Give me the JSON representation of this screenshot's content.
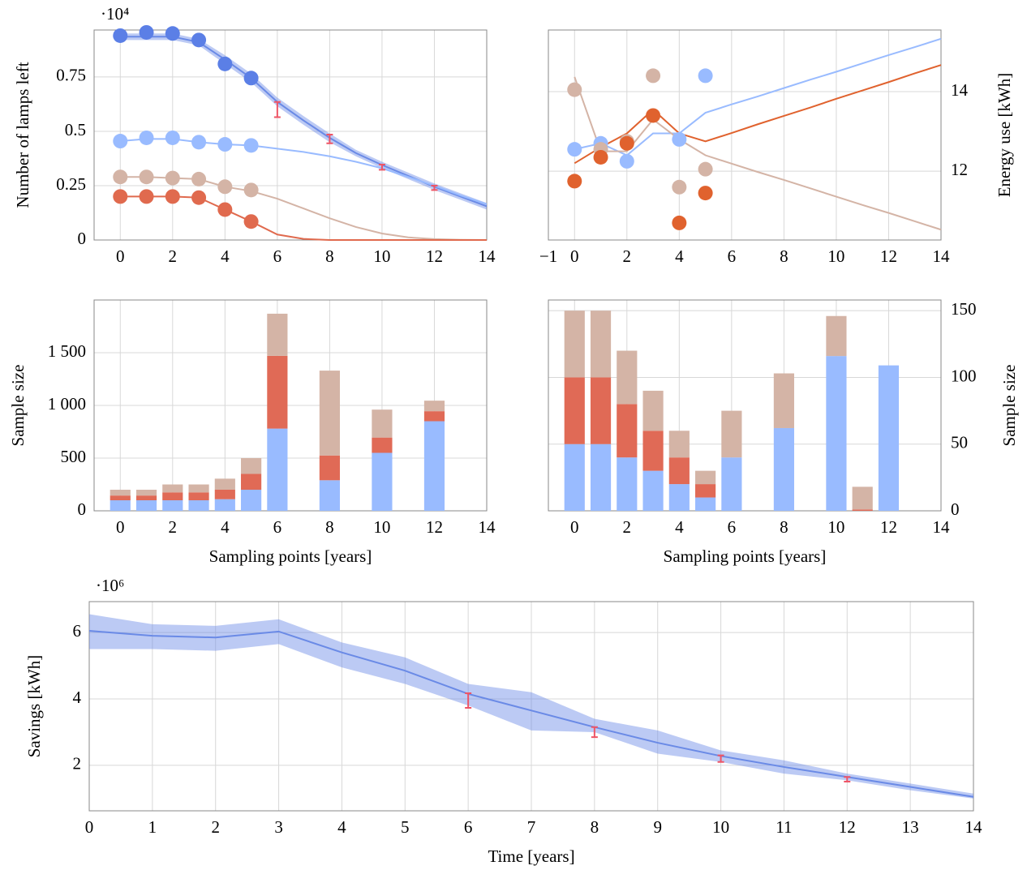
{
  "chart_data": [
    {
      "type": "line",
      "ylabel": "Number of lamps left",
      "y_multiplier": "·10⁴",
      "xlim": [
        -1,
        14
      ],
      "ylim": [
        0,
        0.966
      ],
      "xticks": [
        0,
        2,
        4,
        6,
        8,
        10,
        12,
        14
      ],
      "yticks": [
        0,
        0.25,
        0.5,
        0.75
      ],
      "grid": true,
      "x": [
        0,
        1,
        2,
        3,
        4,
        5,
        6,
        7,
        8,
        9,
        10,
        11,
        12,
        13,
        14
      ],
      "series": [
        {
          "color": "#6a8ae6",
          "values": [
            0.935,
            0.935,
            0.935,
            0.91,
            0.83,
            0.745,
            0.635,
            0.55,
            0.47,
            0.4,
            0.345,
            0.295,
            0.245,
            0.2,
            0.155
          ],
          "lower": [
            0.92,
            0.92,
            0.92,
            0.895,
            0.81,
            0.725,
            0.615,
            0.53,
            0.45,
            0.385,
            0.33,
            0.28,
            0.23,
            0.185,
            0.14
          ],
          "upper": [
            0.95,
            0.95,
            0.95,
            0.925,
            0.85,
            0.765,
            0.655,
            0.57,
            0.49,
            0.415,
            0.36,
            0.31,
            0.26,
            0.215,
            0.17
          ]
        },
        {
          "color": "#99bbff",
          "values": [
            0.455,
            0.465,
            0.465,
            0.45,
            0.44,
            0.435,
            0.42,
            0.405,
            0.385,
            0.36,
            0.33,
            0.29,
            0.25,
            0.205,
            0.165
          ]
        },
        {
          "color": "#d4b4a6",
          "values": [
            0.29,
            0.29,
            0.285,
            0.28,
            0.245,
            0.225,
            0.19,
            0.145,
            0.1,
            0.06,
            0.03,
            0.012,
            0.004,
            0.001,
            0
          ]
        },
        {
          "color": "#e06a4e",
          "values": [
            0.2,
            0.2,
            0.2,
            0.195,
            0.14,
            0.085,
            0.025,
            0.005,
            0,
            0,
            0,
            0,
            0,
            0,
            0
          ]
        }
      ],
      "points": [
        {
          "color": "#5b7fe6",
          "x": [
            0,
            1,
            2,
            3,
            4,
            5
          ],
          "values": [
            0.94,
            0.955,
            0.95,
            0.92,
            0.81,
            0.745
          ]
        },
        {
          "color": "#99bbff",
          "x": [
            0,
            1,
            2,
            3,
            4,
            5
          ],
          "values": [
            0.455,
            0.47,
            0.47,
            0.45,
            0.44,
            0.435
          ]
        },
        {
          "color": "#d4b4a6",
          "x": [
            0,
            1,
            2,
            3,
            4,
            5
          ],
          "values": [
            0.29,
            0.29,
            0.285,
            0.28,
            0.245,
            0.23
          ]
        },
        {
          "color": "#e06a4e",
          "x": [
            0,
            1,
            2,
            3,
            4,
            5
          ],
          "values": [
            0.2,
            0.2,
            0.2,
            0.195,
            0.14,
            0.085
          ]
        }
      ],
      "error_bars": {
        "color": "#ee5566",
        "x": [
          6,
          8,
          10,
          12
        ],
        "values": [
          0.6,
          0.465,
          0.335,
          0.24
        ],
        "errors": [
          0.035,
          0.02,
          0.012,
          0.01
        ]
      }
    },
    {
      "type": "line",
      "ylabel": "Energy use [kWh]",
      "y_axis_side": "right",
      "xlim": [
        -1,
        14
      ],
      "ylim": [
        10.27,
        15.55
      ],
      "xticks": [
        {
          "value": -1,
          "label": "−1"
        },
        0,
        2,
        4,
        6,
        8,
        10,
        12,
        14
      ],
      "yticks": [
        12,
        14
      ],
      "grid": true,
      "x": [
        0,
        1,
        2,
        3,
        4,
        5,
        6,
        7,
        8,
        9,
        10,
        11,
        12,
        13,
        14
      ],
      "series": [
        {
          "color": "#99bbff",
          "values": [
            12.55,
            12.7,
            12.4,
            12.95,
            12.95,
            13.47,
            13.68,
            13.88,
            14.09,
            14.3,
            14.5,
            14.71,
            14.92,
            15.12,
            15.33
          ]
        },
        {
          "color": "#e0622e",
          "values": [
            12.2,
            12.6,
            12.95,
            13.55,
            12.95,
            12.75,
            12.96,
            13.18,
            13.39,
            13.6,
            13.82,
            14.03,
            14.24,
            14.46,
            14.67
          ]
        },
        {
          "color": "#d4b4a6",
          "values": [
            14.37,
            12.5,
            12.5,
            13.3,
            12.8,
            12.4,
            12.19,
            11.98,
            11.78,
            11.57,
            11.36,
            11.15,
            10.95,
            10.74,
            10.53
          ]
        }
      ],
      "points": [
        {
          "color": "#99bbff",
          "x": [
            0,
            1,
            2,
            3,
            4,
            5
          ],
          "values": [
            12.55,
            12.7,
            12.25,
            null,
            12.8,
            14.4
          ]
        },
        {
          "color": "#d4b4a6",
          "x": [
            0,
            1,
            2,
            3,
            4,
            5
          ],
          "values": [
            14.05,
            12.55,
            12.75,
            14.4,
            11.6,
            12.05
          ]
        },
        {
          "color": "#e0622e",
          "x": [
            0,
            1,
            2,
            3,
            4,
            5
          ],
          "values": [
            11.75,
            12.35,
            12.7,
            13.4,
            10.7,
            11.45
          ]
        }
      ]
    },
    {
      "type": "bar",
      "stacked": true,
      "ylabel": "Sample size",
      "xlabel": "Sampling points [years]",
      "xlim": [
        -1,
        14
      ],
      "ylim": [
        0,
        2000
      ],
      "xticks": [
        0,
        2,
        4,
        6,
        8,
        10,
        12,
        14
      ],
      "yticks": [
        0,
        500,
        {
          "value": 1000,
          "label": "1 000"
        },
        {
          "value": 1500,
          "label": "1 500"
        }
      ],
      "grid": true,
      "x": [
        0,
        1,
        2,
        3,
        4,
        5,
        6,
        8,
        10,
        12
      ],
      "series": [
        {
          "color": "#99bbff",
          "values": [
            100,
            100,
            100,
            100,
            110,
            200,
            780,
            290,
            550,
            850
          ]
        },
        {
          "color": "#e06a56",
          "values": [
            45,
            45,
            75,
            75,
            90,
            150,
            690,
            235,
            145,
            95
          ]
        },
        {
          "color": "#d4b4a6",
          "values": [
            55,
            55,
            75,
            75,
            105,
            150,
            400,
            805,
            265,
            100
          ]
        }
      ]
    },
    {
      "type": "bar",
      "stacked": true,
      "ylabel": "Sample size",
      "xlabel": "Sampling points [years]",
      "y_axis_side": "right",
      "xlim": [
        -1,
        14
      ],
      "ylim": [
        0,
        158
      ],
      "xticks": [
        0,
        2,
        4,
        6,
        8,
        10,
        12,
        14
      ],
      "yticks": [
        0,
        50,
        100,
        150
      ],
      "grid": true,
      "x": [
        0,
        1,
        2,
        3,
        4,
        5,
        6,
        8,
        10,
        11,
        12
      ],
      "series": [
        {
          "color": "#99bbff",
          "values": [
            50,
            50,
            40,
            30,
            20,
            10,
            40,
            62,
            116,
            0,
            109
          ]
        },
        {
          "color": "#e06a56",
          "values": [
            50,
            50,
            40,
            30,
            20,
            10,
            0,
            0,
            0,
            1,
            0
          ]
        },
        {
          "color": "#d4b4a6",
          "values": [
            50,
            50,
            40,
            30,
            20,
            10,
            35,
            41,
            30,
            17,
            0
          ]
        }
      ]
    },
    {
      "type": "line",
      "ylabel": "Savings [kWh]",
      "xlabel": "Time [years]",
      "y_multiplier": "·10⁶",
      "xlim": [
        0,
        14
      ],
      "ylim": [
        0.63,
        6.93
      ],
      "xticks": [
        0,
        1,
        2,
        3,
        4,
        5,
        6,
        7,
        8,
        9,
        10,
        11,
        12,
        13,
        14
      ],
      "yticks": [
        2,
        4,
        6
      ],
      "grid": true,
      "x": [
        0,
        1,
        2,
        3,
        4,
        5,
        6,
        7,
        8,
        9,
        10,
        11,
        12,
        13,
        14
      ],
      "series": [
        {
          "color": "#6a8ae6",
          "values": [
            6.05,
            5.9,
            5.85,
            6.03,
            5.4,
            4.85,
            4.15,
            3.65,
            3.15,
            2.68,
            2.28,
            1.95,
            1.65,
            1.35,
            1.05
          ],
          "lower": [
            5.5,
            5.5,
            5.45,
            5.65,
            4.95,
            4.45,
            3.8,
            3.05,
            3.0,
            2.35,
            2.1,
            1.75,
            1.55,
            1.25,
            1.0
          ],
          "upper": [
            6.55,
            6.25,
            6.2,
            6.4,
            5.7,
            5.25,
            4.45,
            4.2,
            3.4,
            3.05,
            2.45,
            2.15,
            1.75,
            1.45,
            1.15
          ]
        }
      ],
      "error_bars": {
        "color": "#ee5566",
        "x": [
          6,
          8,
          10,
          12
        ],
        "values": [
          3.95,
          3.0,
          2.2,
          1.58
        ],
        "errors": [
          0.22,
          0.15,
          0.1,
          0.07
        ]
      }
    }
  ]
}
